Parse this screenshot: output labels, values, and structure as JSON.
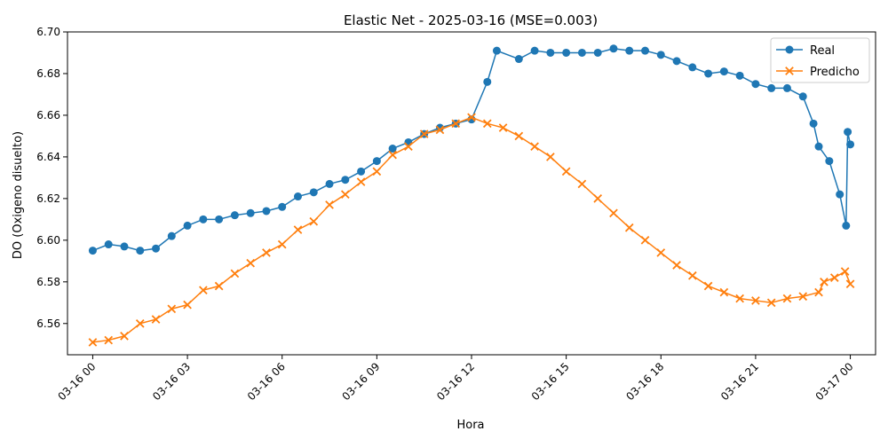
{
  "chart_data": {
    "type": "line",
    "title": "Elastic Net - 2025-03-16 (MSE=0.003)",
    "xlabel": "Hora",
    "ylabel": "DO (Oxigeno disuelto)",
    "xlim": [
      "2025-03-15 23:12",
      "2025-03-17 00:48"
    ],
    "ylim": [
      6.545,
      6.7
    ],
    "grid": false,
    "legend_position": "top-right",
    "x_ticks": [
      {
        "t": "2025-03-16 00:00",
        "label": "03-16 00"
      },
      {
        "t": "2025-03-16 03:00",
        "label": "03-16 03"
      },
      {
        "t": "2025-03-16 06:00",
        "label": "03-16 06"
      },
      {
        "t": "2025-03-16 09:00",
        "label": "03-16 09"
      },
      {
        "t": "2025-03-16 12:00",
        "label": "03-16 12"
      },
      {
        "t": "2025-03-16 15:00",
        "label": "03-16 15"
      },
      {
        "t": "2025-03-16 18:00",
        "label": "03-16 18"
      },
      {
        "t": "2025-03-16 21:00",
        "label": "03-16 21"
      },
      {
        "t": "2025-03-17 00:00",
        "label": "03-17 00"
      }
    ],
    "y_ticks": [
      {
        "v": 6.56,
        "label": "6.56"
      },
      {
        "v": 6.58,
        "label": "6.58"
      },
      {
        "v": 6.6,
        "label": "6.60"
      },
      {
        "v": 6.62,
        "label": "6.62"
      },
      {
        "v": 6.64,
        "label": "6.64"
      },
      {
        "v": 6.66,
        "label": "6.66"
      },
      {
        "v": 6.68,
        "label": "6.68"
      },
      {
        "v": 6.7,
        "label": "6.70"
      }
    ],
    "series": [
      {
        "name": "Real",
        "color": "#1f77b4",
        "marker": "circle",
        "points": [
          [
            "2025-03-16 00:00",
            6.595
          ],
          [
            "2025-03-16 00:30",
            6.598
          ],
          [
            "2025-03-16 01:00",
            6.597
          ],
          [
            "2025-03-16 01:30",
            6.595
          ],
          [
            "2025-03-16 02:00",
            6.596
          ],
          [
            "2025-03-16 02:30",
            6.602
          ],
          [
            "2025-03-16 03:00",
            6.607
          ],
          [
            "2025-03-16 03:30",
            6.61
          ],
          [
            "2025-03-16 04:00",
            6.61
          ],
          [
            "2025-03-16 04:30",
            6.612
          ],
          [
            "2025-03-16 05:00",
            6.613
          ],
          [
            "2025-03-16 05:30",
            6.614
          ],
          [
            "2025-03-16 06:00",
            6.616
          ],
          [
            "2025-03-16 06:30",
            6.621
          ],
          [
            "2025-03-16 07:00",
            6.623
          ],
          [
            "2025-03-16 07:30",
            6.627
          ],
          [
            "2025-03-16 08:00",
            6.629
          ],
          [
            "2025-03-16 08:30",
            6.633
          ],
          [
            "2025-03-16 09:00",
            6.638
          ],
          [
            "2025-03-16 09:30",
            6.644
          ],
          [
            "2025-03-16 10:00",
            6.647
          ],
          [
            "2025-03-16 10:30",
            6.651
          ],
          [
            "2025-03-16 11:00",
            6.654
          ],
          [
            "2025-03-16 11:30",
            6.656
          ],
          [
            "2025-03-16 12:00",
            6.658
          ],
          [
            "2025-03-16 12:30",
            6.676
          ],
          [
            "2025-03-16 12:48",
            6.691
          ],
          [
            "2025-03-16 13:30",
            6.687
          ],
          [
            "2025-03-16 14:00",
            6.691
          ],
          [
            "2025-03-16 14:30",
            6.69
          ],
          [
            "2025-03-16 15:00",
            6.69
          ],
          [
            "2025-03-16 15:30",
            6.69
          ],
          [
            "2025-03-16 16:00",
            6.69
          ],
          [
            "2025-03-16 16:30",
            6.692
          ],
          [
            "2025-03-16 17:00",
            6.691
          ],
          [
            "2025-03-16 17:30",
            6.691
          ],
          [
            "2025-03-16 18:00",
            6.689
          ],
          [
            "2025-03-16 18:30",
            6.686
          ],
          [
            "2025-03-16 19:00",
            6.683
          ],
          [
            "2025-03-16 19:30",
            6.68
          ],
          [
            "2025-03-16 20:00",
            6.681
          ],
          [
            "2025-03-16 20:30",
            6.679
          ],
          [
            "2025-03-16 21:00",
            6.675
          ],
          [
            "2025-03-16 21:30",
            6.673
          ],
          [
            "2025-03-16 22:00",
            6.673
          ],
          [
            "2025-03-16 22:30",
            6.669
          ],
          [
            "2025-03-16 22:50",
            6.656
          ],
          [
            "2025-03-16 23:00",
            6.645
          ],
          [
            "2025-03-16 23:20",
            6.638
          ],
          [
            "2025-03-16 23:40",
            6.622
          ],
          [
            "2025-03-16 23:52",
            6.607
          ],
          [
            "2025-03-16 23:55",
            6.652
          ],
          [
            "2025-03-17 00:00",
            6.646
          ]
        ]
      },
      {
        "name": "Predicho",
        "color": "#ff7f0e",
        "marker": "x",
        "points": [
          [
            "2025-03-16 00:00",
            6.551
          ],
          [
            "2025-03-16 00:30",
            6.552
          ],
          [
            "2025-03-16 01:00",
            6.554
          ],
          [
            "2025-03-16 01:30",
            6.56
          ],
          [
            "2025-03-16 02:00",
            6.562
          ],
          [
            "2025-03-16 02:30",
            6.567
          ],
          [
            "2025-03-16 03:00",
            6.569
          ],
          [
            "2025-03-16 03:30",
            6.576
          ],
          [
            "2025-03-16 04:00",
            6.578
          ],
          [
            "2025-03-16 04:30",
            6.584
          ],
          [
            "2025-03-16 05:00",
            6.589
          ],
          [
            "2025-03-16 05:30",
            6.594
          ],
          [
            "2025-03-16 06:00",
            6.598
          ],
          [
            "2025-03-16 06:30",
            6.605
          ],
          [
            "2025-03-16 07:00",
            6.609
          ],
          [
            "2025-03-16 07:30",
            6.617
          ],
          [
            "2025-03-16 08:00",
            6.622
          ],
          [
            "2025-03-16 08:30",
            6.628
          ],
          [
            "2025-03-16 09:00",
            6.633
          ],
          [
            "2025-03-16 09:30",
            6.641
          ],
          [
            "2025-03-16 10:00",
            6.645
          ],
          [
            "2025-03-16 10:30",
            6.651
          ],
          [
            "2025-03-16 11:00",
            6.653
          ],
          [
            "2025-03-16 11:30",
            6.656
          ],
          [
            "2025-03-16 12:00",
            6.659
          ],
          [
            "2025-03-16 12:30",
            6.656
          ],
          [
            "2025-03-16 13:00",
            6.654
          ],
          [
            "2025-03-16 13:30",
            6.65
          ],
          [
            "2025-03-16 14:00",
            6.645
          ],
          [
            "2025-03-16 14:30",
            6.64
          ],
          [
            "2025-03-16 15:00",
            6.633
          ],
          [
            "2025-03-16 15:30",
            6.627
          ],
          [
            "2025-03-16 16:00",
            6.62
          ],
          [
            "2025-03-16 16:30",
            6.613
          ],
          [
            "2025-03-16 17:00",
            6.606
          ],
          [
            "2025-03-16 17:30",
            6.6
          ],
          [
            "2025-03-16 18:00",
            6.594
          ],
          [
            "2025-03-16 18:30",
            6.588
          ],
          [
            "2025-03-16 19:00",
            6.583
          ],
          [
            "2025-03-16 19:30",
            6.578
          ],
          [
            "2025-03-16 20:00",
            6.575
          ],
          [
            "2025-03-16 20:30",
            6.572
          ],
          [
            "2025-03-16 21:00",
            6.571
          ],
          [
            "2025-03-16 21:30",
            6.57
          ],
          [
            "2025-03-16 22:00",
            6.572
          ],
          [
            "2025-03-16 22:30",
            6.573
          ],
          [
            "2025-03-16 23:00",
            6.575
          ],
          [
            "2025-03-16 23:10",
            6.58
          ],
          [
            "2025-03-16 23:30",
            6.582
          ],
          [
            "2025-03-16 23:50",
            6.585
          ],
          [
            "2025-03-17 00:00",
            6.579
          ]
        ]
      }
    ]
  }
}
